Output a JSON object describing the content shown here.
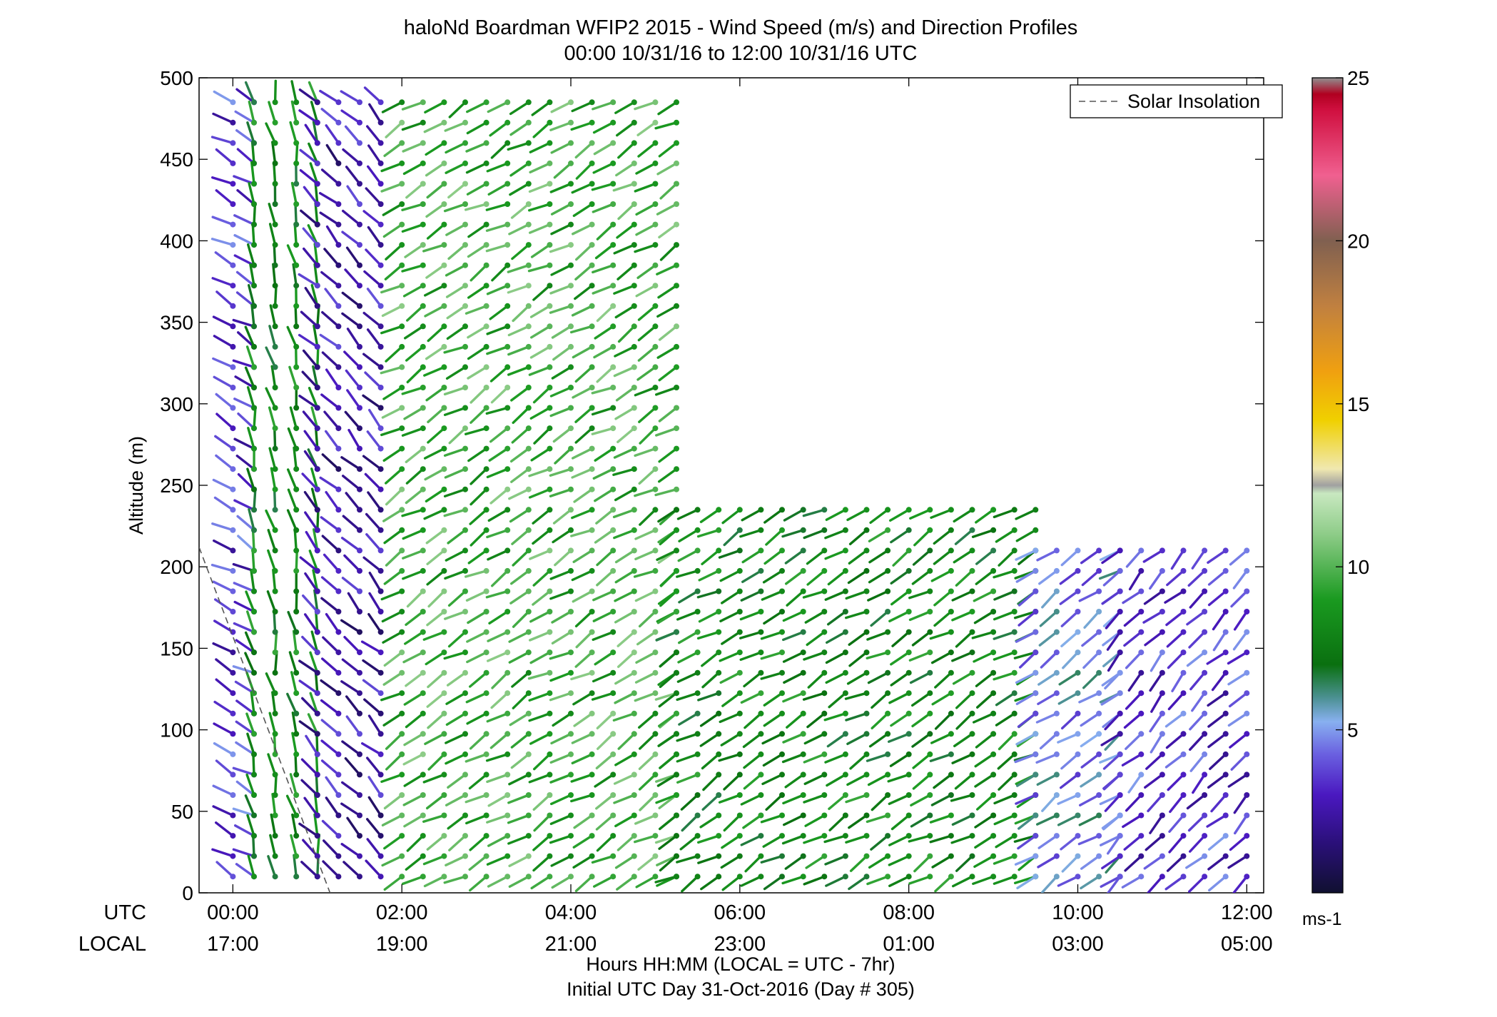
{
  "title_line1": "haloNd Boardman WFIP2 2015 - Wind Speed (m/s) and Direction Profiles",
  "title_line2": "00:00 10/31/16 to 12:00 10/31/16  UTC",
  "legend_label": "Solar Insolation",
  "row_label_utc": "UTC",
  "row_label_local": "LOCAL",
  "xaxis_label_line1": "Hours HH:MM  (LOCAL = UTC - 7hr)",
  "xaxis_label_line2": "Initial UTC Day 31-Oct-2016 (Day # 305)",
  "colorbar_unit": "ms-1",
  "chart_data": {
    "type": "wind-barb profile",
    "ylabel": "Altitude (m)",
    "ylim": [
      0,
      500
    ],
    "yticks": [
      "0",
      "50",
      "100",
      "150",
      "200",
      "250",
      "300",
      "350",
      "400",
      "450",
      "500"
    ],
    "xlim_hours": [
      -0.4,
      12.2
    ],
    "xticks_utc": [
      "00:00",
      "02:00",
      "04:00",
      "06:00",
      "08:00",
      "10:00",
      "12:00"
    ],
    "xticks_local": [
      "17:00",
      "19:00",
      "21:00",
      "23:00",
      "01:00",
      "03:00",
      "05:00"
    ],
    "colorbar": {
      "range": [
        0,
        25
      ],
      "ticks": [
        "5",
        "10",
        "15",
        "20",
        "25"
      ]
    },
    "solar_insolation_line": [
      [
        -0.4,
        212
      ],
      [
        1.15,
        0
      ]
    ],
    "wind_samples_note": "barbs every ~0.25 h, every ~12.5 m; speed in m/s, direction in degrees",
    "series": [
      {
        "hour_range": [
          0.0,
          0.25
        ],
        "altitude_max": 490,
        "speed_ms": 3.5,
        "direction_deg": 300
      },
      {
        "hour_range": [
          0.25,
          1.0
        ],
        "altitude_max": 490,
        "speed_ms": 8.0,
        "direction_deg": 350
      },
      {
        "hour_range": [
          1.0,
          1.75
        ],
        "altitude_max": 490,
        "speed_ms": 2.5,
        "direction_deg": 315
      },
      {
        "hour_range": [
          2.0,
          5.25
        ],
        "altitude_max": 490,
        "speed_ms": 9.5,
        "direction_deg": 240
      },
      {
        "hour_range": [
          5.25,
          9.5
        ],
        "altitude_max": 245,
        "speed_ms": 8.0,
        "direction_deg": 240
      },
      {
        "hour_range": [
          9.5,
          10.5
        ],
        "altitude_max": 215,
        "speed_ms": 5.0,
        "direction_deg": 235
      },
      {
        "hour_range": [
          10.5,
          12.1
        ],
        "altitude_max": 215,
        "speed_ms": 3.5,
        "direction_deg": 225
      }
    ]
  }
}
